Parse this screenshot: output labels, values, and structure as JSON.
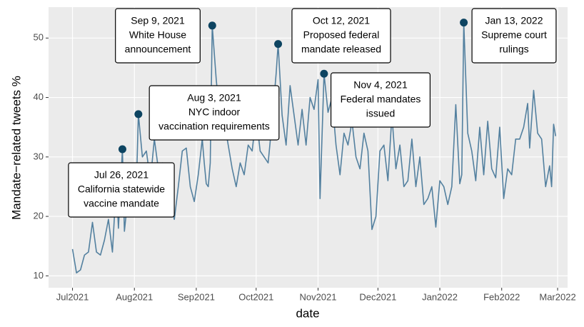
{
  "chart_data": {
    "type": "line",
    "x_label": "date",
    "y_label": "Mandate−related tweets %",
    "color": "#53809f",
    "point_color": "#0d4461",
    "xlim": [
      "2021-06-19",
      "2022-03-06"
    ],
    "xticks": [
      {
        "value": "2021-07-01",
        "label": "Jul2021"
      },
      {
        "value": "2021-08-01",
        "label": "Aug2021"
      },
      {
        "value": "2021-09-01",
        "label": "Sep2021"
      },
      {
        "value": "2021-10-01",
        "label": "Oct2021"
      },
      {
        "value": "2021-11-01",
        "label": "Nov2021"
      },
      {
        "value": "2021-12-01",
        "label": "Dec2021"
      },
      {
        "value": "2022-01-01",
        "label": "Jan2022"
      },
      {
        "value": "2022-02-01",
        "label": "Feb2022"
      },
      {
        "value": "2022-03-01",
        "label": "Mar2022"
      }
    ],
    "ylim": [
      8,
      55.2
    ],
    "yticks": [
      10,
      20,
      30,
      40,
      50
    ],
    "grid": true,
    "x": [
      "2021-07-01",
      "2021-07-03",
      "2021-07-05",
      "2021-07-07",
      "2021-07-09",
      "2021-07-11",
      "2021-07-13",
      "2021-07-15",
      "2021-07-17",
      "2021-07-19",
      "2021-07-21",
      "2021-07-23",
      "2021-07-24",
      "2021-07-26",
      "2021-07-27",
      "2021-07-29",
      "2021-07-31",
      "2021-08-02",
      "2021-08-03",
      "2021-08-05",
      "2021-08-07",
      "2021-08-09",
      "2021-08-11",
      "2021-08-13",
      "2021-08-15",
      "2021-08-17",
      "2021-08-19",
      "2021-08-21",
      "2021-08-23",
      "2021-08-25",
      "2021-08-27",
      "2021-08-29",
      "2021-08-31",
      "2021-09-02",
      "2021-09-04",
      "2021-09-05",
      "2021-09-06",
      "2021-09-07",
      "2021-09-08",
      "2021-09-09",
      "2021-09-11",
      "2021-09-13",
      "2021-09-15",
      "2021-09-17",
      "2021-09-19",
      "2021-09-21",
      "2021-09-23",
      "2021-09-25",
      "2021-09-27",
      "2021-09-29",
      "2021-10-01",
      "2021-10-03",
      "2021-10-05",
      "2021-10-07",
      "2021-10-09",
      "2021-10-11",
      "2021-10-12",
      "2021-10-14",
      "2021-10-16",
      "2021-10-18",
      "2021-10-20",
      "2021-10-22",
      "2021-10-24",
      "2021-10-26",
      "2021-10-28",
      "2021-10-30",
      "2021-11-01",
      "2021-11-02",
      "2021-11-04",
      "2021-11-06",
      "2021-11-08",
      "2021-11-10",
      "2021-11-12",
      "2021-11-14",
      "2021-11-16",
      "2021-11-18",
      "2021-11-20",
      "2021-11-22",
      "2021-11-24",
      "2021-11-26",
      "2021-11-28",
      "2021-11-30",
      "2021-12-02",
      "2021-12-04",
      "2021-12-06",
      "2021-12-08",
      "2021-12-10",
      "2021-12-12",
      "2021-12-14",
      "2021-12-16",
      "2021-12-18",
      "2021-12-20",
      "2021-12-22",
      "2021-12-24",
      "2021-12-26",
      "2021-12-28",
      "2021-12-30",
      "2022-01-01",
      "2022-01-03",
      "2022-01-05",
      "2022-01-07",
      "2022-01-09",
      "2022-01-11",
      "2022-01-12",
      "2022-01-13",
      "2022-01-15",
      "2022-01-17",
      "2022-01-19",
      "2022-01-21",
      "2022-01-23",
      "2022-01-25",
      "2022-01-27",
      "2022-01-29",
      "2022-01-31",
      "2022-02-02",
      "2022-02-04",
      "2022-02-06",
      "2022-02-08",
      "2022-02-10",
      "2022-02-12",
      "2022-02-14",
      "2022-02-15",
      "2022-02-17",
      "2022-02-19",
      "2022-02-21",
      "2022-02-23",
      "2022-02-25",
      "2022-02-26",
      "2022-02-27",
      "2022-02-28"
    ],
    "values": [
      14.5,
      10.5,
      11,
      13.5,
      14,
      19,
      14,
      13.5,
      16,
      19.5,
      14,
      26,
      18,
      31.3,
      17.5,
      24,
      21,
      25,
      37.2,
      30,
      31,
      26,
      33,
      28,
      29,
      27,
      22,
      19.5,
      25,
      31,
      31.5,
      25,
      22.5,
      27,
      33,
      29,
      25.5,
      25,
      29,
      52.1,
      43,
      36,
      36,
      32,
      28,
      25,
      29,
      27,
      32,
      31,
      37,
      31,
      30,
      29,
      36,
      44,
      49,
      37,
      32,
      42,
      37,
      32,
      38,
      32,
      40,
      38,
      43,
      23,
      44,
      37.5,
      40,
      32,
      27,
      34,
      32,
      36,
      30,
      28,
      34,
      31,
      17.8,
      20,
      31,
      32,
      26,
      37,
      28,
      32,
      25,
      26,
      33,
      25,
      30,
      22,
      23,
      25,
      18.2,
      26,
      25,
      22,
      25,
      38.8,
      25.5,
      27,
      52.6,
      34,
      31,
      26,
      35,
      27,
      36,
      28,
      26.5,
      35,
      23,
      28,
      27,
      33,
      33,
      35,
      39,
      31.5,
      41.2,
      34,
      33,
      25,
      28.5,
      25,
      35.5,
      33.5
    ],
    "annotations": [
      {
        "x": "2021-07-26",
        "lines": [
          "Jul 26, 2021",
          "California statewide",
          "vaccine mandate"
        ]
      },
      {
        "x": "2021-08-03",
        "lines": [
          "Aug 3, 2021",
          "NYC indoor",
          "vaccination requirements"
        ]
      },
      {
        "x": "2021-09-09",
        "lines": [
          "Sep 9, 2021",
          "White House",
          "announcement"
        ]
      },
      {
        "x": "2021-10-12",
        "lines": [
          "Oct 12, 2021",
          "Proposed federal",
          "mandate released"
        ]
      },
      {
        "x": "2021-11-04",
        "lines": [
          "Nov 4, 2021",
          "Federal mandates",
          "issued"
        ]
      },
      {
        "x": "2022-01-13",
        "lines": [
          "Jan 13, 2022",
          "Supreme court",
          "rulings"
        ]
      }
    ]
  }
}
